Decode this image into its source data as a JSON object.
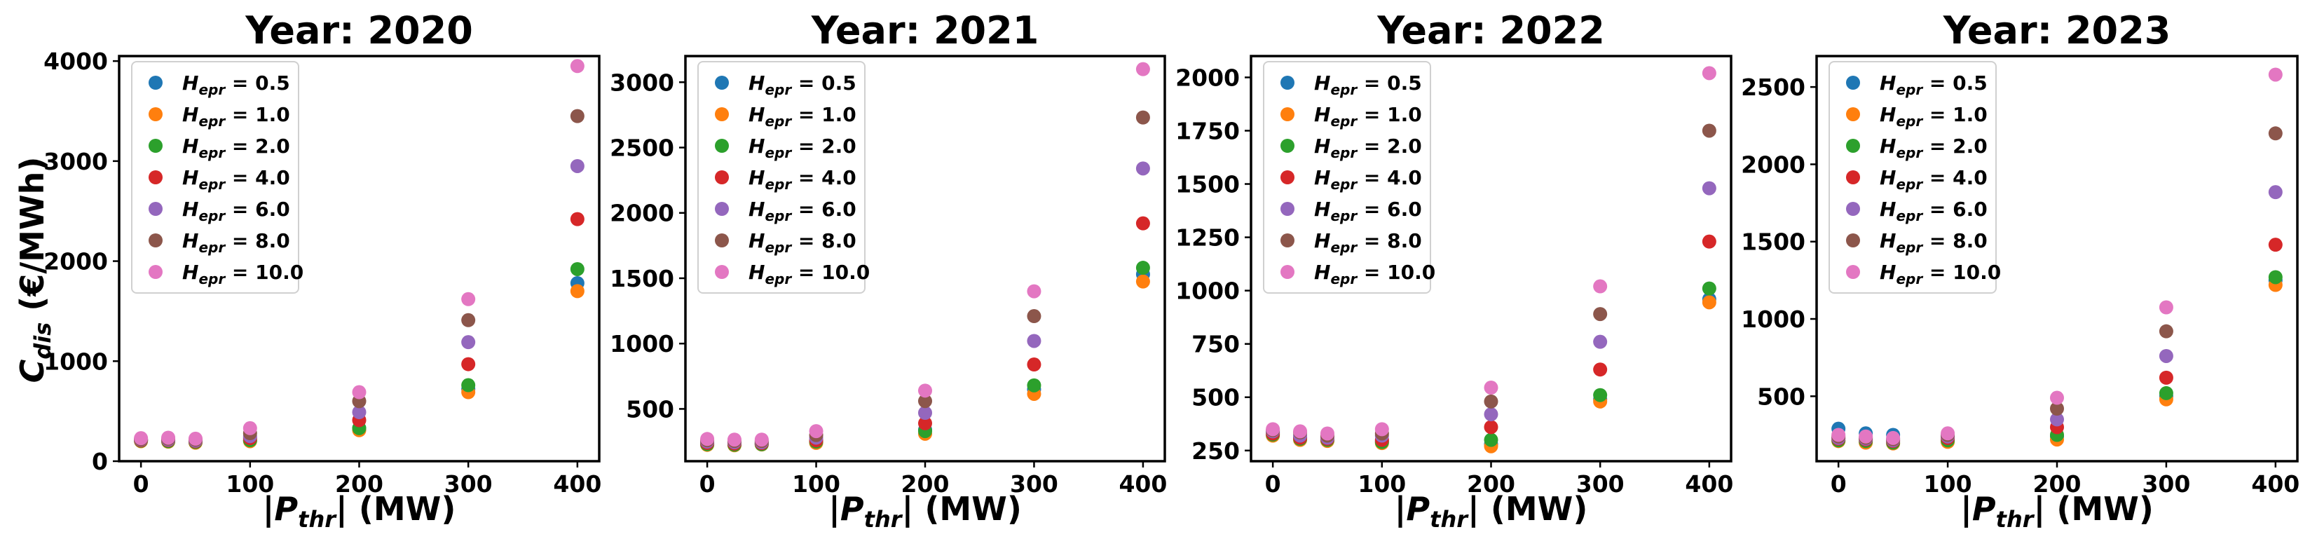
{
  "figure": {
    "ylabel_main": "C",
    "ylabel_sub": "dis",
    "ylabel_unit": " (€/MWh)",
    "xlabel_pre": "|",
    "xlabel_main": "P",
    "xlabel_sub": "thr",
    "xlabel_post": "| (MW)"
  },
  "legend": {
    "symbol": "H",
    "sub": "epr",
    "entries": [
      {
        "label": "H_epr = 0.5",
        "value": "0.5",
        "color": "#1f77b4"
      },
      {
        "label": "H_epr = 1.0",
        "value": "1.0",
        "color": "#ff7f0e"
      },
      {
        "label": "H_epr = 2.0",
        "value": "2.0",
        "color": "#2ca02c"
      },
      {
        "label": "H_epr = 4.0",
        "value": "4.0",
        "color": "#d62728"
      },
      {
        "label": "H_epr = 6.0",
        "value": "6.0",
        "color": "#9467bd"
      },
      {
        "label": "H_epr = 8.0",
        "value": "8.0",
        "color": "#8c564b"
      },
      {
        "label": "H_epr = 10.0",
        "value": "10.0",
        "color": "#e377c2"
      }
    ]
  },
  "chart_data": [
    {
      "type": "scatter",
      "title": "Year: 2020",
      "xlabel": "|P_thr| (MW)",
      "ylabel": "C_dis (€/MWh)",
      "x": [
        0,
        25,
        50,
        100,
        200,
        300,
        400
      ],
      "xticks": [
        0,
        100,
        200,
        300,
        400
      ],
      "yticks": [
        0,
        1000,
        2000,
        3000,
        4000
      ],
      "yticklabels": [
        "0",
        "1000",
        "2000",
        "3000",
        "4000"
      ],
      "ylim": [
        0,
        4050
      ],
      "series": [
        {
          "name": "H_epr = 0.5",
          "values": [
            210,
            205,
            200,
            205,
            330,
            720,
            1780
          ]
        },
        {
          "name": "H_epr = 1.0",
          "values": [
            200,
            195,
            185,
            200,
            310,
            690,
            1700
          ]
        },
        {
          "name": "H_epr = 2.0",
          "values": [
            205,
            200,
            192,
            210,
            330,
            760,
            1920
          ]
        },
        {
          "name": "H_epr = 4.0",
          "values": [
            210,
            210,
            200,
            230,
            410,
            970,
            2420
          ]
        },
        {
          "name": "H_epr = 6.0",
          "values": [
            215,
            215,
            205,
            250,
            490,
            1190,
            2950
          ]
        },
        {
          "name": "H_epr = 8.0",
          "values": [
            220,
            225,
            215,
            280,
            600,
            1410,
            3450
          ]
        },
        {
          "name": "H_epr = 10.0",
          "values": [
            230,
            235,
            225,
            330,
            690,
            1620,
            3950
          ]
        }
      ]
    },
    {
      "type": "scatter",
      "title": "Year: 2021",
      "xlabel": "|P_thr| (MW)",
      "ylabel": "",
      "x": [
        0,
        25,
        50,
        100,
        200,
        300,
        400
      ],
      "xticks": [
        0,
        100,
        200,
        300,
        400
      ],
      "yticks": [
        500,
        1000,
        1500,
        2000,
        2500,
        3000
      ],
      "yticklabels": [
        "500",
        "1000",
        "1500",
        "2000",
        "2500",
        "3000"
      ],
      "ylim": [
        100,
        3200
      ],
      "series": [
        {
          "name": "H_epr = 0.5",
          "values": [
            235,
            230,
            235,
            250,
            340,
            650,
            1530
          ]
        },
        {
          "name": "H_epr = 1.0",
          "values": [
            225,
            222,
            228,
            240,
            310,
            615,
            1475
          ]
        },
        {
          "name": "H_epr = 2.0",
          "values": [
            230,
            226,
            230,
            250,
            330,
            680,
            1580
          ]
        },
        {
          "name": "H_epr = 4.0",
          "values": [
            240,
            235,
            238,
            260,
            390,
            840,
            1920
          ]
        },
        {
          "name": "H_epr = 6.0",
          "values": [
            250,
            245,
            245,
            280,
            470,
            1020,
            2340
          ]
        },
        {
          "name": "H_epr = 8.0",
          "values": [
            260,
            255,
            255,
            300,
            560,
            1210,
            2730
          ]
        },
        {
          "name": "H_epr = 10.0",
          "values": [
            270,
            265,
            265,
            330,
            640,
            1400,
            3100
          ]
        }
      ]
    },
    {
      "type": "scatter",
      "title": "Year: 2022",
      "xlabel": "|P_thr| (MW)",
      "ylabel": "",
      "x": [
        0,
        25,
        50,
        100,
        200,
        300,
        400
      ],
      "xticks": [
        0,
        100,
        200,
        300,
        400
      ],
      "yticks": [
        250,
        500,
        750,
        1000,
        1250,
        1500,
        1750,
        2000
      ],
      "yticklabels": [
        "250",
        "500",
        "750",
        "1000",
        "1250",
        "1500",
        "1750",
        "2000"
      ],
      "ylim": [
        200,
        2100
      ],
      "series": [
        {
          "name": "H_epr = 0.5",
          "values": [
            335,
            310,
            300,
            295,
            280,
            490,
            960
          ]
        },
        {
          "name": "H_epr = 1.0",
          "values": [
            320,
            300,
            295,
            285,
            270,
            480,
            945
          ]
        },
        {
          "name": "H_epr = 2.0",
          "values": [
            325,
            305,
            300,
            290,
            300,
            510,
            1010
          ]
        },
        {
          "name": "H_epr = 4.0",
          "values": [
            330,
            310,
            305,
            300,
            360,
            630,
            1230
          ]
        },
        {
          "name": "H_epr = 6.0",
          "values": [
            340,
            320,
            310,
            320,
            420,
            760,
            1480
          ]
        },
        {
          "name": "H_epr = 8.0",
          "values": [
            345,
            335,
            320,
            330,
            480,
            890,
            1750
          ]
        },
        {
          "name": "H_epr = 10.0",
          "values": [
            350,
            340,
            330,
            350,
            545,
            1020,
            2020
          ]
        }
      ]
    },
    {
      "type": "scatter",
      "title": "Year: 2023",
      "xlabel": "|P_thr| (MW)",
      "ylabel": "",
      "x": [
        0,
        25,
        50,
        100,
        200,
        300,
        400
      ],
      "xticks": [
        0,
        100,
        200,
        300,
        400
      ],
      "yticks": [
        500,
        1000,
        1500,
        2000,
        2500
      ],
      "yticklabels": [
        "500",
        "1000",
        "1500",
        "2000",
        "2500"
      ],
      "ylim": [
        80,
        2700
      ],
      "series": [
        {
          "name": "H_epr = 0.5",
          "values": [
            290,
            260,
            250,
            240,
            240,
            500,
            1250
          ]
        },
        {
          "name": "H_epr = 1.0",
          "values": [
            210,
            200,
            195,
            205,
            220,
            480,
            1220
          ]
        },
        {
          "name": "H_epr = 2.0",
          "values": [
            215,
            210,
            200,
            215,
            250,
            520,
            1270
          ]
        },
        {
          "name": "H_epr = 4.0",
          "values": [
            225,
            220,
            210,
            230,
            300,
            620,
            1480
          ]
        },
        {
          "name": "H_epr = 6.0",
          "values": [
            230,
            225,
            215,
            240,
            350,
            760,
            1820
          ]
        },
        {
          "name": "H_epr = 8.0",
          "values": [
            240,
            232,
            222,
            250,
            420,
            920,
            2200
          ]
        },
        {
          "name": "H_epr = 10.0",
          "values": [
            250,
            240,
            230,
            260,
            490,
            1075,
            2580
          ]
        }
      ]
    }
  ]
}
